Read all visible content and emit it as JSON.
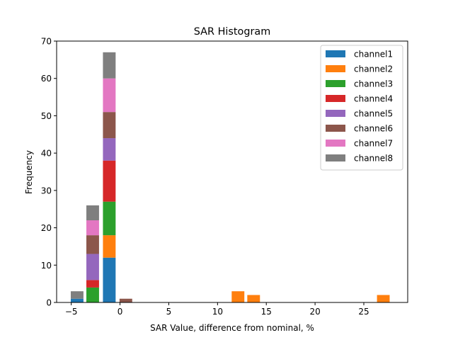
{
  "chart_data": {
    "type": "bar",
    "stacked": true,
    "title": "SAR Histogram",
    "xlabel": "SAR Value, difference from nominal, %",
    "ylabel": "Frequency",
    "xlim": [
      -6.5,
      29.5
    ],
    "ylim": [
      0,
      70
    ],
    "xticks": [
      -5,
      0,
      5,
      10,
      15,
      20,
      25
    ],
    "xtick_labels": [
      "−5",
      "0",
      "5",
      "10",
      "15",
      "20",
      "25"
    ],
    "yticks": [
      0,
      10,
      20,
      30,
      40,
      50,
      60,
      70
    ],
    "ytick_labels": [
      "0",
      "10",
      "20",
      "30",
      "40",
      "50",
      "60",
      "70"
    ],
    "bin_width": 1.3,
    "bin_centers": [
      -4.4,
      -2.8,
      -1.1,
      0.6,
      12.1,
      13.7,
      27.0
    ],
    "legend_location": "upper-right",
    "series": [
      {
        "name": "channel1",
        "color": "#1f77b4",
        "values": [
          1,
          0,
          12,
          0,
          0,
          0,
          0
        ]
      },
      {
        "name": "channel2",
        "color": "#ff7f0e",
        "values": [
          0,
          0,
          6,
          0,
          3,
          2,
          2
        ]
      },
      {
        "name": "channel3",
        "color": "#2ca02c",
        "values": [
          0,
          4,
          9,
          0,
          0,
          0,
          0
        ]
      },
      {
        "name": "channel4",
        "color": "#d62728",
        "values": [
          0,
          2,
          11,
          0,
          0,
          0,
          0
        ]
      },
      {
        "name": "channel5",
        "color": "#9467bd",
        "values": [
          0,
          7,
          6,
          0,
          0,
          0,
          0
        ]
      },
      {
        "name": "channel6",
        "color": "#8c564b",
        "values": [
          0,
          5,
          7,
          1,
          0,
          0,
          0
        ]
      },
      {
        "name": "channel7",
        "color": "#e377c2",
        "values": [
          0,
          4,
          9,
          0,
          0,
          0,
          0
        ]
      },
      {
        "name": "channel8",
        "color": "#7f7f7f",
        "values": [
          2,
          4,
          7,
          0,
          0,
          0,
          0
        ]
      }
    ]
  }
}
